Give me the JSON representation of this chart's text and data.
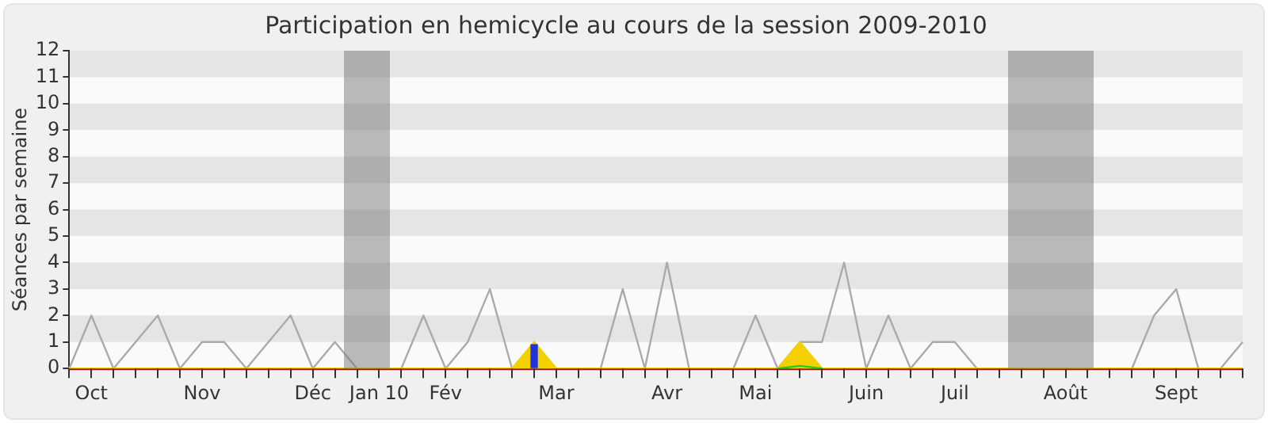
{
  "chart_data": {
    "type": "line",
    "title": "Participation en hemicycle au cours de la session 2009-2010",
    "ylabel": "Séances par semaine",
    "categories": [
      null,
      "Oct",
      null,
      null,
      null,
      null,
      "Nov",
      null,
      null,
      null,
      null,
      "Déc",
      null,
      null,
      "Jan 10",
      null,
      null,
      "Fév",
      null,
      null,
      null,
      null,
      "Mar",
      null,
      null,
      null,
      null,
      "Avr",
      null,
      null,
      null,
      "Mai",
      null,
      null,
      null,
      null,
      "Juin",
      null,
      null,
      null,
      "Juil",
      null,
      null,
      null,
      null,
      "Août",
      null,
      null,
      null,
      null,
      "Sept",
      null,
      null,
      null
    ],
    "series": [
      {
        "color": "#aaaaaa",
        "values": [
          0,
          2,
          0,
          1,
          2,
          0,
          1,
          1,
          0,
          1,
          2,
          0,
          1,
          0,
          0,
          0,
          2,
          0,
          1,
          3,
          0,
          null,
          0,
          0,
          0,
          3,
          0,
          4,
          0,
          0,
          0,
          2,
          0,
          1,
          1,
          4,
          0,
          2,
          0,
          1,
          1,
          0,
          0,
          0,
          0,
          0,
          0,
          0,
          0,
          2,
          3,
          0,
          0,
          1
        ]
      },
      {
        "type": "area",
        "color": "#f5d000",
        "values": [
          0,
          0,
          0,
          0,
          0,
          0,
          0,
          0,
          0,
          0,
          0,
          0,
          0,
          0,
          0,
          0,
          0,
          0,
          0,
          0,
          0,
          1,
          0,
          0,
          0,
          0,
          0,
          0,
          0,
          0,
          0,
          0,
          0,
          1,
          0,
          0,
          0,
          0,
          0,
          0,
          0,
          0,
          0,
          0,
          0,
          0,
          0,
          0,
          0,
          0,
          0,
          0,
          0,
          0
        ]
      },
      {
        "type": "line",
        "color": "#22cc22",
        "values": [
          null,
          null,
          null,
          null,
          null,
          null,
          null,
          null,
          null,
          null,
          null,
          null,
          null,
          null,
          null,
          null,
          null,
          null,
          null,
          null,
          null,
          null,
          null,
          null,
          null,
          null,
          null,
          null,
          null,
          null,
          null,
          null,
          0,
          0.1,
          0,
          null,
          null,
          null,
          null,
          null,
          null,
          null,
          null,
          null,
          null,
          null,
          null,
          null,
          null,
          null,
          null,
          null,
          null,
          null
        ]
      },
      {
        "type": "bar",
        "color": "#2233dd",
        "values": [
          null,
          null,
          null,
          null,
          null,
          null,
          null,
          null,
          null,
          null,
          null,
          null,
          null,
          null,
          null,
          null,
          null,
          null,
          null,
          null,
          null,
          0.9,
          null,
          null,
          null,
          null,
          null,
          null,
          null,
          null,
          null,
          null,
          null,
          null,
          null,
          null,
          null,
          null,
          null,
          null,
          null,
          null,
          null,
          null,
          null,
          null,
          null,
          null,
          null,
          null,
          null,
          null,
          null,
          null
        ]
      }
    ],
    "ylim": [
      0,
      12
    ],
    "yticks": [
      0,
      1,
      2,
      3,
      4,
      5,
      6,
      7,
      8,
      9,
      10,
      11,
      12
    ],
    "legend": false,
    "marker": "none",
    "line_style": "solid"
  }
}
